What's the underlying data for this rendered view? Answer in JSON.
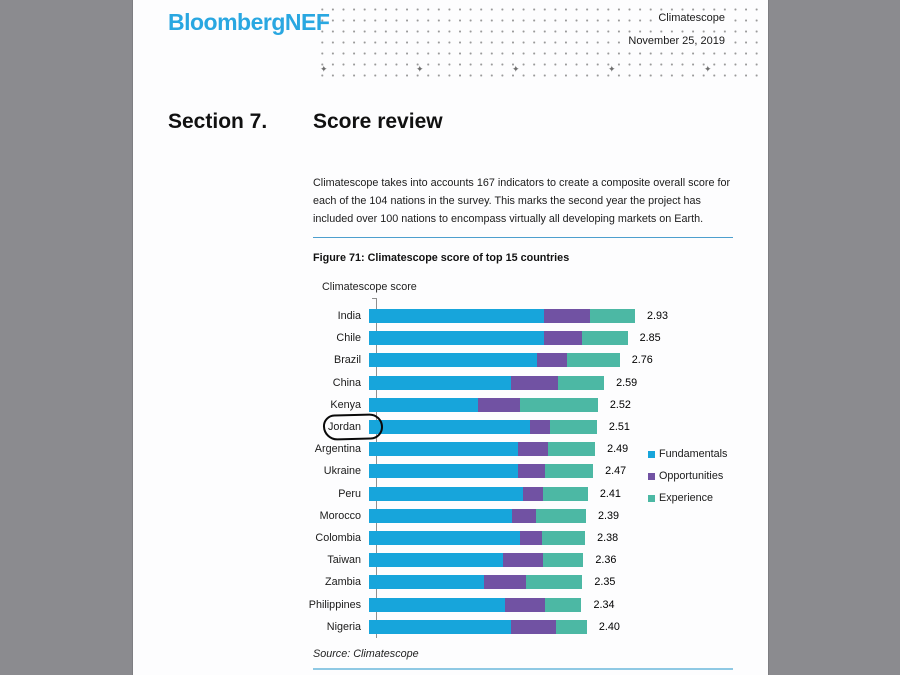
{
  "page": {
    "header": {
      "logo": "BloombergNEF",
      "logo_color": "#29a7e1",
      "doc_title": "Climatescope",
      "date": "November 25, 2019"
    },
    "section": {
      "number": "Section 7.",
      "title": "Score review"
    },
    "intro_text": "Climatescope takes into accounts 167 indicators to create a composite overall score for each of the 104 nations in the survey. This marks the second year the project has included over 100 nations to encompass virtually all developing markets on Earth.",
    "source": "Source: Climatescope"
  },
  "chart_data": {
    "type": "bar",
    "orientation": "horizontal",
    "stacked": true,
    "title": "Figure 71: Climatescope score of top 15 countries",
    "axis_label": "Climatescope score",
    "xlim": [
      0,
      3
    ],
    "grid": false,
    "legend_position": "right",
    "legend": [
      {
        "name": "Fundamentals",
        "color": "#17a5db"
      },
      {
        "name": "Opportunities",
        "color": "#7152a3"
      },
      {
        "name": "Experience",
        "color": "#4cb8a4"
      }
    ],
    "categories": [
      "India",
      "Chile",
      "Brazil",
      "China",
      "Kenya",
      "Jordan",
      "Argentina",
      "Ukraine",
      "Peru",
      "Morocco",
      "Colombia",
      "Taiwan",
      "Zambia",
      "Philippines",
      "Nigeria"
    ],
    "series": [
      {
        "name": "Fundamentals",
        "values": [
          1.93,
          1.93,
          1.85,
          1.56,
          1.2,
          1.77,
          1.64,
          1.64,
          1.7,
          1.57,
          1.66,
          1.47,
          1.27,
          1.5,
          1.56
        ]
      },
      {
        "name": "Opportunities",
        "values": [
          0.5,
          0.42,
          0.33,
          0.52,
          0.46,
          0.22,
          0.33,
          0.3,
          0.22,
          0.27,
          0.25,
          0.45,
          0.46,
          0.44,
          0.5
        ]
      },
      {
        "name": "Experience",
        "values": [
          0.5,
          0.5,
          0.58,
          0.51,
          0.86,
          0.52,
          0.52,
          0.53,
          0.49,
          0.55,
          0.47,
          0.44,
          0.62,
          0.4,
          0.34
        ]
      }
    ],
    "totals": [
      2.93,
      2.85,
      2.76,
      2.59,
      2.52,
      2.51,
      2.49,
      2.47,
      2.41,
      2.39,
      2.38,
      2.36,
      2.35,
      2.34,
      2.4
    ],
    "value_labels": [
      "2.93",
      "2.85",
      "2.76",
      "2.59",
      "2.52",
      "2.51",
      "2.49",
      "2.47",
      "2.41",
      "2.39",
      "2.38",
      "2.36",
      "2.35",
      "2.34",
      "2.40"
    ],
    "annotated_category": "Jordan",
    "annotation_style": "hand-drawn black circle"
  }
}
